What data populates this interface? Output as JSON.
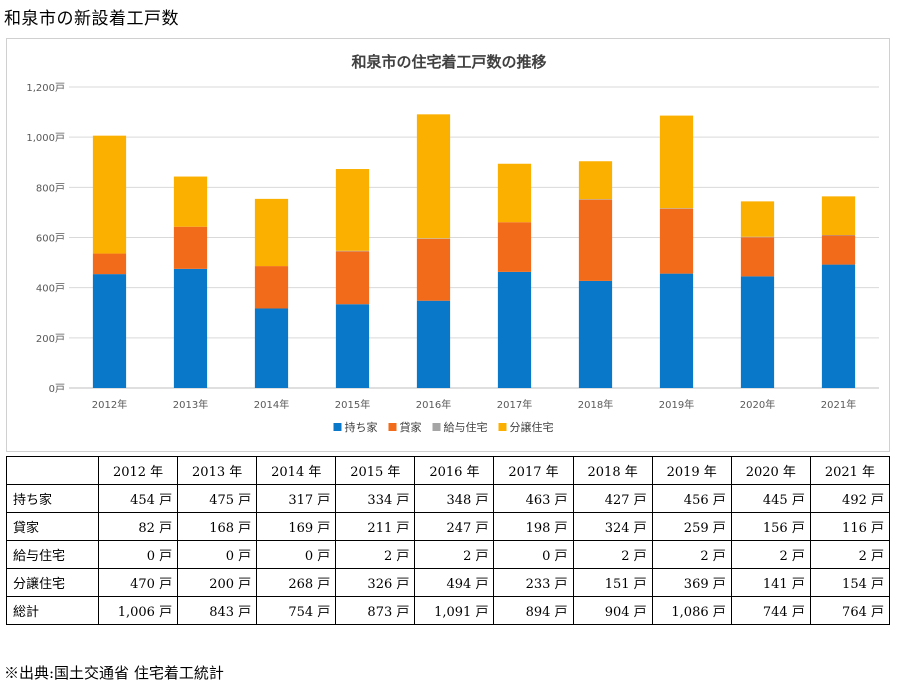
{
  "page_title": "和泉市の新設着工戸数",
  "chart_data": {
    "type": "bar",
    "stacked": true,
    "title": "和泉市の住宅着工戸数の推移",
    "categories": [
      "2012年",
      "2013年",
      "2014年",
      "2015年",
      "2016年",
      "2017年",
      "2018年",
      "2019年",
      "2020年",
      "2021年"
    ],
    "series": [
      {
        "name": "持ち家",
        "color": "#0a78c8",
        "values": [
          454,
          475,
          317,
          334,
          348,
          463,
          427,
          456,
          445,
          492
        ]
      },
      {
        "name": "貸家",
        "color": "#f26b1a",
        "values": [
          82,
          168,
          169,
          211,
          247,
          198,
          324,
          259,
          156,
          116
        ]
      },
      {
        "name": "給与住宅",
        "color": "#a5a5a5",
        "values": [
          0,
          0,
          0,
          2,
          2,
          0,
          2,
          2,
          2,
          2
        ]
      },
      {
        "name": "分譲住宅",
        "color": "#fbb000",
        "values": [
          470,
          200,
          268,
          326,
          494,
          233,
          151,
          369,
          141,
          154
        ]
      }
    ],
    "ylim": [
      0,
      1200
    ],
    "yticks": [
      "0戸",
      "200戸",
      "400戸",
      "600戸",
      "800戸",
      "1,000戸",
      "1,200戸"
    ],
    "grid": true,
    "legend_position": "bottom"
  },
  "table": {
    "headers": [
      "",
      "2012 年",
      "2013 年",
      "2014 年",
      "2015 年",
      "2016 年",
      "2017 年",
      "2018 年",
      "2019 年",
      "2020 年",
      "2021 年"
    ],
    "rows": [
      {
        "label": "持ち家",
        "cells": [
          "454 戸",
          "475 戸",
          "317 戸",
          "334 戸",
          "348 戸",
          "463 戸",
          "427 戸",
          "456 戸",
          "445 戸",
          "492 戸"
        ]
      },
      {
        "label": "貸家",
        "cells": [
          "82 戸",
          "168 戸",
          "169 戸",
          "211 戸",
          "247 戸",
          "198 戸",
          "324 戸",
          "259 戸",
          "156 戸",
          "116 戸"
        ]
      },
      {
        "label": "給与住宅",
        "cells": [
          "0 戸",
          "0 戸",
          "0 戸",
          "2 戸",
          "2 戸",
          "0 戸",
          "2 戸",
          "2 戸",
          "2 戸",
          "2 戸"
        ]
      },
      {
        "label": "分譲住宅",
        "cells": [
          "470 戸",
          "200 戸",
          "268 戸",
          "326 戸",
          "494 戸",
          "233 戸",
          "151 戸",
          "369 戸",
          "141 戸",
          "154 戸"
        ]
      },
      {
        "label": "総計",
        "cells": [
          "1,006 戸",
          "843 戸",
          "754 戸",
          "873 戸",
          "1,091 戸",
          "894 戸",
          "904 戸",
          "1,086 戸",
          "744 戸",
          "764 戸"
        ]
      }
    ]
  },
  "source_note": "※出典:国土交通省 住宅着工統計"
}
